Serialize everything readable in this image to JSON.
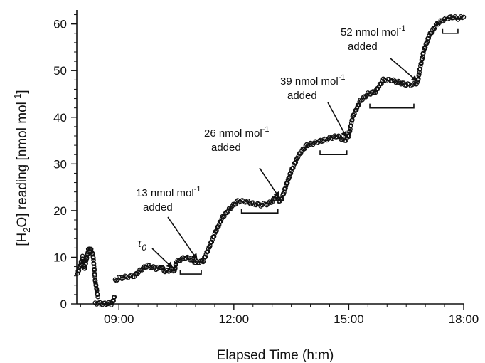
{
  "chart_data": {
    "type": "scatter",
    "xlabel": "Elapsed Time (h:m)",
    "ylabel": {
      "open": "[H",
      "sub": "2",
      "close": "O]  reading [nmol mol",
      "sup": "-1",
      "end": "]"
    },
    "x_ticks": [
      {
        "value": 9,
        "label": "09:00"
      },
      {
        "value": 12,
        "label": "12:00"
      },
      {
        "value": 15,
        "label": "15:00"
      },
      {
        "value": 18,
        "label": "18:00"
      }
    ],
    "y_ticks": [
      0,
      10,
      20,
      30,
      40,
      50,
      60
    ],
    "xlim": [
      7.9,
      18.0
    ],
    "ylim": [
      0,
      63
    ],
    "grid": false,
    "series": [
      {
        "marker": "open-circle",
        "color": "#111111",
        "segments": [
          [
            [
              7.92,
              6.5
            ],
            [
              8.0,
              8.5
            ],
            [
              8.05,
              10.0
            ],
            [
              8.1,
              7.5
            ],
            [
              8.15,
              9.5
            ],
            [
              8.2,
              11.5
            ],
            [
              8.25,
              12.0
            ],
            [
              8.3,
              11.0
            ],
            [
              8.33,
              10.0
            ],
            [
              8.36,
              7.0
            ],
            [
              8.38,
              5.0
            ],
            [
              8.4,
              4.0
            ],
            [
              8.42,
              3.0
            ],
            [
              8.45,
              1.5
            ]
          ],
          [
            [
              8.38,
              0.2
            ],
            [
              8.5,
              0.1
            ],
            [
              8.6,
              0.0
            ],
            [
              8.7,
              0.1
            ],
            [
              8.8,
              0.0
            ],
            [
              8.85,
              0.6
            ],
            [
              8.88,
              1.5
            ]
          ],
          [
            [
              8.9,
              5.0
            ],
            [
              9.0,
              5.5
            ],
            [
              9.2,
              5.8
            ],
            [
              9.4,
              6.0
            ],
            [
              9.6,
              7.5
            ],
            [
              9.75,
              8.2
            ],
            [
              9.9,
              7.8
            ],
            [
              10.0,
              7.5
            ],
            [
              10.1,
              8.0
            ],
            [
              10.2,
              7.0
            ],
            [
              10.3,
              7.2
            ],
            [
              10.4,
              7.5
            ],
            [
              10.45,
              7.0
            ],
            [
              10.5,
              9.0
            ],
            [
              10.6,
              9.5
            ],
            [
              10.75,
              10.0
            ],
            [
              10.9,
              9.5
            ],
            [
              11.0,
              8.8
            ],
            [
              11.1,
              9.0
            ],
            [
              11.2,
              9.2
            ],
            [
              11.35,
              12.0
            ],
            [
              11.5,
              15.0
            ],
            [
              11.7,
              18.5
            ],
            [
              11.9,
              20.5
            ],
            [
              12.1,
              22.0
            ],
            [
              12.3,
              22.0
            ],
            [
              12.5,
              21.5
            ],
            [
              12.7,
              21.2
            ],
            [
              12.9,
              21.5
            ],
            [
              13.0,
              22.0
            ],
            [
              13.1,
              23.0
            ],
            [
              13.2,
              22.0
            ],
            [
              13.25,
              22.5
            ],
            [
              13.35,
              25.0
            ],
            [
              13.5,
              28.5
            ],
            [
              13.7,
              32.0
            ],
            [
              13.9,
              34.0
            ],
            [
              14.1,
              34.5
            ],
            [
              14.3,
              35.0
            ],
            [
              14.5,
              35.5
            ],
            [
              14.7,
              36.0
            ],
            [
              14.8,
              35.5
            ],
            [
              14.9,
              35.0
            ],
            [
              15.0,
              36.0
            ],
            [
              15.1,
              40.0
            ],
            [
              15.3,
              43.5
            ],
            [
              15.5,
              45.0
            ],
            [
              15.7,
              45.5
            ],
            [
              15.9,
              48.0
            ],
            [
              16.1,
              48.0
            ],
            [
              16.3,
              47.5
            ],
            [
              16.5,
              47.0
            ],
            [
              16.7,
              47.0
            ],
            [
              16.8,
              47.5
            ],
            [
              16.85,
              50.0
            ],
            [
              16.95,
              54.0
            ],
            [
              17.1,
              57.5
            ],
            [
              17.3,
              60.0
            ],
            [
              17.5,
              61.0
            ],
            [
              17.7,
              61.5
            ],
            [
              17.85,
              61.2
            ],
            [
              18.0,
              61.5
            ]
          ]
        ]
      }
    ],
    "annotations": [
      {
        "label": "13 nmol mol",
        "sup": "-1",
        "label2": "added",
        "arrow_to": [
          11.05,
          8.8
        ]
      },
      {
        "label": "26 nmol mol",
        "sup": "-1",
        "label2": "added",
        "arrow_to": [
          13.2,
          22.0
        ]
      },
      {
        "label": "39 nmol mol",
        "sup": "-1",
        "label2": "added",
        "arrow_to": [
          14.95,
          35.0
        ]
      },
      {
        "label": "52 nmol mol",
        "sup": "-1",
        "label2": "added",
        "arrow_to": [
          16.8,
          47.0
        ]
      }
    ],
    "tau": {
      "symbol": "τ",
      "sub": "0",
      "arrow_to": [
        10.45,
        7.0
      ]
    },
    "brackets": [
      {
        "x0": 10.6,
        "x1": 11.15,
        "y": 6.4
      },
      {
        "x0": 12.2,
        "x1": 13.15,
        "y": 19.5
      },
      {
        "x0": 14.25,
        "x1": 14.95,
        "y": 32.0
      },
      {
        "x0": 15.55,
        "x1": 16.7,
        "y": 42.0
      },
      {
        "x0": 17.45,
        "x1": 17.85,
        "y": 58.0
      }
    ]
  }
}
